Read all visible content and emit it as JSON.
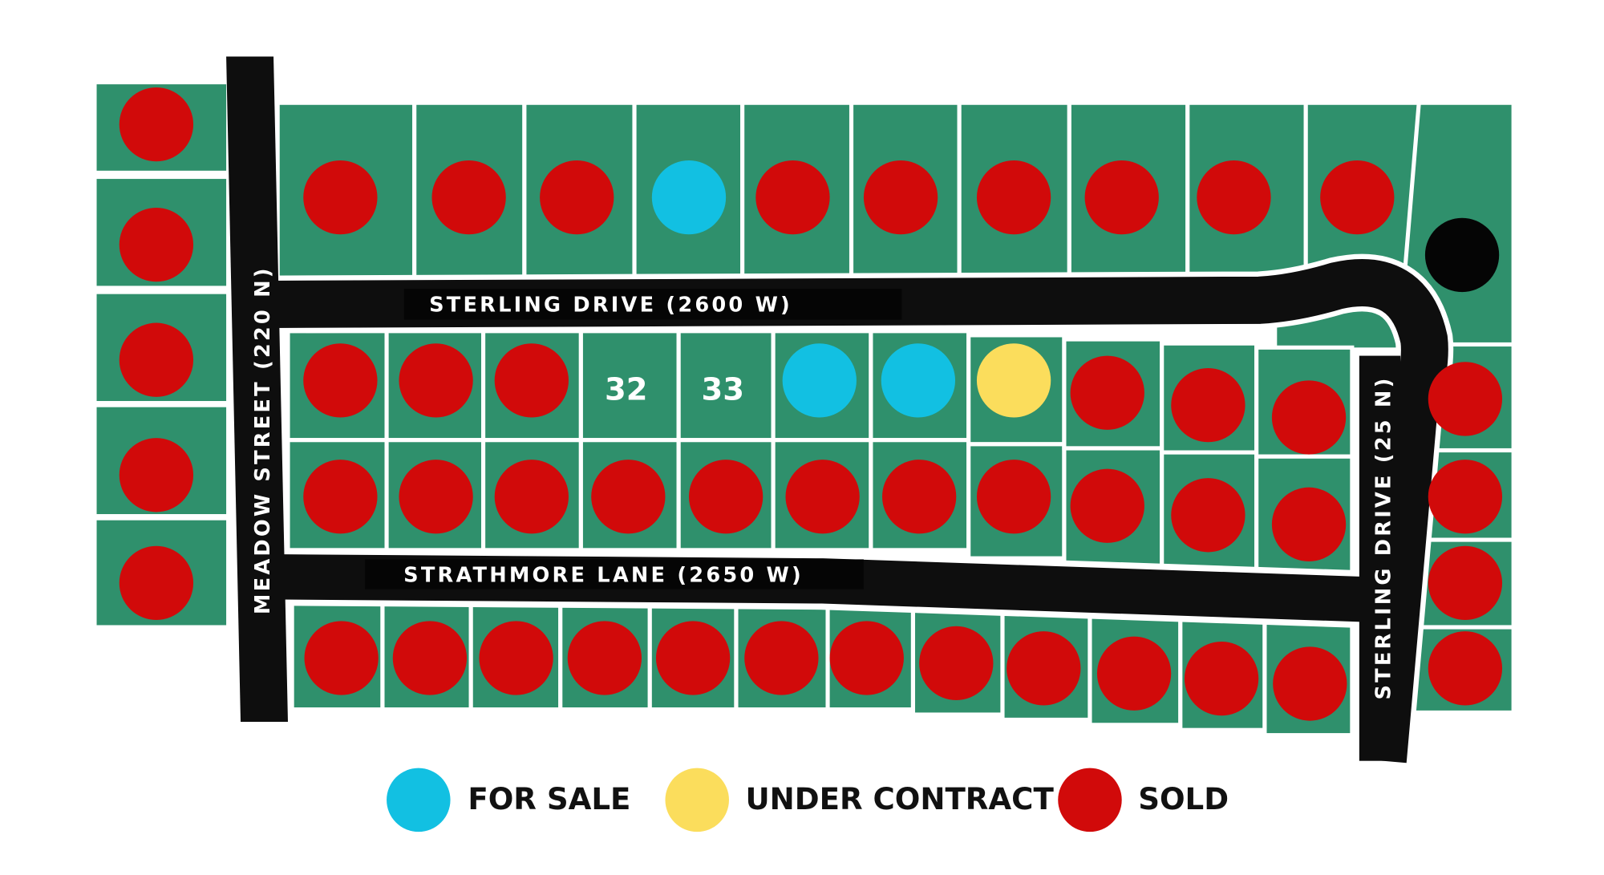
{
  "streets": {
    "meadow": "MEADOW STREET (220 N)",
    "sterling_top": "STERLING DRIVE (2600 W)",
    "strathmore": "STRATHMORE LANE (2650 W)",
    "sterling_side": "STERLING DRIVE (25 N)"
  },
  "lot_labels": [
    "32",
    "33"
  ],
  "legend": [
    {
      "label": "FOR SALE",
      "color": "#12c0e2"
    },
    {
      "label": "UNDER CONTRACT",
      "color": "#fbdd5c"
    },
    {
      "label": "SOLD",
      "color": "#d10a0a"
    }
  ]
}
